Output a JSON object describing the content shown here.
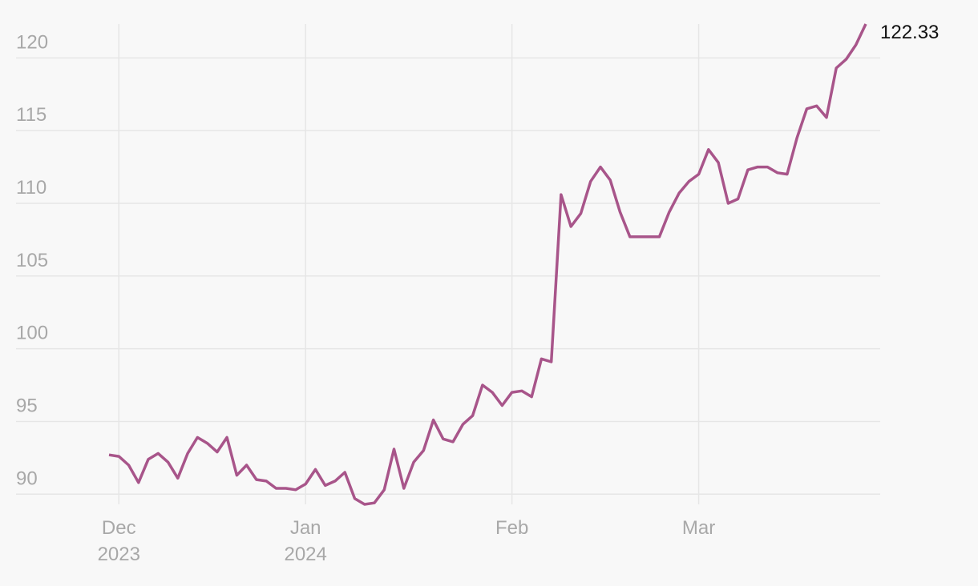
{
  "chart_data": {
    "type": "line",
    "categories": [
      null,
      "Dec 2023",
      null,
      null,
      null,
      null,
      null,
      null,
      null,
      null,
      null,
      null,
      null,
      null,
      null,
      null,
      null,
      null,
      null,
      null,
      "Jan 2024",
      null,
      null,
      null,
      null,
      null,
      null,
      null,
      null,
      null,
      null,
      null,
      null,
      null,
      null,
      null,
      null,
      null,
      null,
      null,
      null,
      "Feb",
      null,
      null,
      null,
      null,
      null,
      null,
      null,
      null,
      null,
      null,
      null,
      null,
      null,
      null,
      null,
      null,
      null,
      null,
      "Mar",
      null,
      null,
      null,
      null,
      null,
      null,
      null,
      null,
      null,
      null,
      null,
      null,
      null,
      null,
      null,
      null,
      null
    ],
    "values": [
      92.7,
      92.6,
      92.0,
      90.8,
      92.4,
      92.8,
      92.2,
      91.1,
      92.8,
      93.9,
      93.5,
      92.9,
      93.9,
      91.3,
      92.0,
      91.0,
      90.9,
      90.4,
      90.4,
      90.3,
      90.7,
      91.7,
      90.6,
      90.9,
      91.5,
      89.7,
      89.3,
      89.4,
      90.3,
      93.1,
      90.4,
      92.2,
      93.0,
      95.1,
      93.8,
      93.6,
      94.8,
      95.4,
      97.5,
      97.0,
      96.1,
      97.0,
      97.1,
      96.7,
      99.3,
      99.1,
      110.6,
      108.4,
      109.3,
      111.5,
      112.5,
      111.6,
      109.4,
      107.7,
      107.7,
      107.7,
      107.7,
      109.4,
      110.7,
      111.5,
      112.0,
      113.7,
      112.8,
      110.0,
      110.3,
      112.3,
      112.5,
      112.5,
      112.1,
      112.0,
      114.5,
      116.5,
      116.7,
      115.9,
      119.3,
      119.9,
      120.9,
      122.33
    ],
    "color": "#a8558a",
    "ylim": [
      89.3,
      122.33
    ],
    "yticks": [
      90,
      95,
      100,
      105,
      110,
      115,
      120
    ],
    "grid": true
  }
}
